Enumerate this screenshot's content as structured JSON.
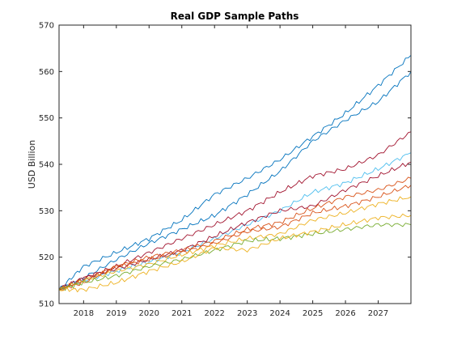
{
  "chart_data": {
    "type": "line",
    "title": "Real GDP Sample Paths",
    "xlabel": "",
    "ylabel": "USD Billion",
    "xlim": [
      2017.25,
      2028.0
    ],
    "ylim": [
      510,
      570
    ],
    "x_ticks": [
      2018,
      2019,
      2020,
      2021,
      2022,
      2023,
      2024,
      2025,
      2026,
      2027
    ],
    "y_ticks": [
      510,
      520,
      530,
      540,
      550,
      560,
      570
    ],
    "grid": false,
    "legend": "none",
    "x": [
      2017.25,
      2018,
      2019,
      2020,
      2021,
      2022,
      2023,
      2024,
      2025,
      2026,
      2027,
      2028
    ],
    "series": [
      {
        "color": "#0072BD",
        "values": [
          513.0,
          518.0,
          521.0,
          524.0,
          528.0,
          533.5,
          537.0,
          541.0,
          546.0,
          551.0,
          557.0,
          563.5
        ]
      },
      {
        "color": "#0072BD",
        "values": [
          513.0,
          515.5,
          519.5,
          523.0,
          526.0,
          529.0,
          533.5,
          538.5,
          545.0,
          549.5,
          553.5,
          560.0
        ]
      },
      {
        "color": "#A2142F",
        "values": [
          513.0,
          515.5,
          518.0,
          521.0,
          524.0,
          527.0,
          530.0,
          534.0,
          537.5,
          539.0,
          542.0,
          547.0
        ]
      },
      {
        "color": "#4DBEEE",
        "values": [
          513.0,
          515.0,
          517.0,
          519.0,
          521.0,
          524.0,
          527.0,
          530.0,
          534.0,
          536.0,
          539.0,
          542.5
        ]
      },
      {
        "color": "#A2142F",
        "values": [
          513.0,
          515.5,
          517.5,
          519.5,
          521.5,
          524.5,
          527.5,
          530.0,
          531.0,
          534.5,
          537.5,
          540.5
        ]
      },
      {
        "color": "#D95319",
        "values": [
          513.0,
          515.0,
          518.0,
          520.0,
          521.5,
          523.5,
          526.0,
          527.5,
          530.5,
          533.0,
          534.5,
          537.0
        ]
      },
      {
        "color": "#D95319",
        "values": [
          513.0,
          514.5,
          518.0,
          519.5,
          521.0,
          523.0,
          525.5,
          526.5,
          529.5,
          531.0,
          533.0,
          535.5
        ]
      },
      {
        "color": "#EDB120",
        "values": [
          513.0,
          515.0,
          517.0,
          518.5,
          520.5,
          522.5,
          524.0,
          525.0,
          528.0,
          529.5,
          531.5,
          533.0
        ]
      },
      {
        "color": "#77AC30",
        "values": [
          513.0,
          514.5,
          516.0,
          518.0,
          519.5,
          521.5,
          523.5,
          524.0,
          525.0,
          526.0,
          527.0,
          527.0
        ]
      },
      {
        "color": "#EDB120",
        "values": [
          513.0,
          513.0,
          514.5,
          517.0,
          519.0,
          522.0,
          521.5,
          524.0,
          525.5,
          527.0,
          528.5,
          529.0
        ]
      }
    ]
  }
}
